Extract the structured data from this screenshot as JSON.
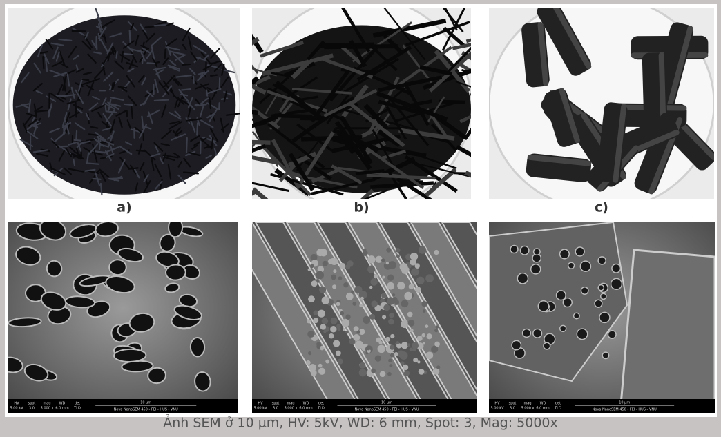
{
  "panels": [
    {
      "label": "a)"
    },
    {
      "label": "b)"
    },
    {
      "label": "c)"
    }
  ],
  "sem_bar": {
    "hv_label": "HV",
    "hv": "5.00 kV",
    "spot_label": "spot",
    "spot": "3.0",
    "mag_label": "mag",
    "mag": "5 000 x",
    "wd_label": "WD",
    "wd": "6.0 mm",
    "det_label": "det",
    "det": "TLD",
    "scale": "10 µm",
    "instrument": "Nova NanoSEM 450 - FEI - HUS - VNU"
  },
  "caption": "Ảnh SEM ở 10 µm, HV: 5kV, WD: 6 mm, Spot: 3, Mag: 5000x"
}
